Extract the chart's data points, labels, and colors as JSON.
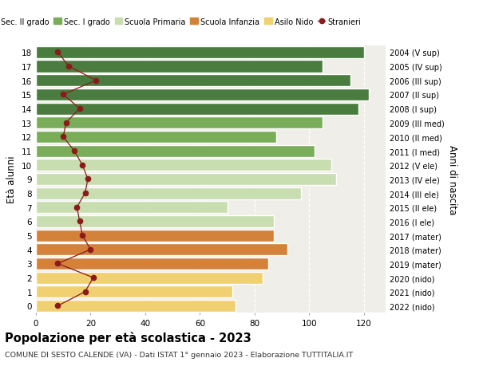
{
  "ages": [
    18,
    17,
    16,
    15,
    14,
    13,
    12,
    11,
    10,
    9,
    8,
    7,
    6,
    5,
    4,
    3,
    2,
    1,
    0
  ],
  "years": [
    "2004 (V sup)",
    "2005 (IV sup)",
    "2006 (III sup)",
    "2007 (II sup)",
    "2008 (I sup)",
    "2009 (III med)",
    "2010 (II med)",
    "2011 (I med)",
    "2012 (V ele)",
    "2013 (IV ele)",
    "2014 (III ele)",
    "2015 (II ele)",
    "2016 (I ele)",
    "2017 (mater)",
    "2018 (mater)",
    "2019 (mater)",
    "2020 (nido)",
    "2021 (nido)",
    "2022 (nido)"
  ],
  "bar_values": [
    120,
    105,
    115,
    122,
    118,
    105,
    88,
    102,
    108,
    110,
    97,
    70,
    87,
    87,
    92,
    85,
    83,
    72,
    73
  ],
  "bar_colors": [
    "#4a7c3f",
    "#4a7c3f",
    "#4a7c3f",
    "#4a7c3f",
    "#4a7c3f",
    "#7aad5a",
    "#7aad5a",
    "#7aad5a",
    "#c8ddb0",
    "#c8ddb0",
    "#c8ddb0",
    "#c8ddb0",
    "#c8ddb0",
    "#d4813a",
    "#d4813a",
    "#d4813a",
    "#f0d070",
    "#f0d070",
    "#f0d070"
  ],
  "stranieri_values": [
    8,
    12,
    22,
    10,
    16,
    11,
    10,
    14,
    17,
    19,
    18,
    15,
    16,
    17,
    20,
    8,
    21,
    18,
    8
  ],
  "stranieri_color": "#8b1a1a",
  "legend_labels": [
    "Sec. II grado",
    "Sec. I grado",
    "Scuola Primaria",
    "Scuola Infanzia",
    "Asilo Nido",
    "Stranieri"
  ],
  "legend_colors": [
    "#4a7c3f",
    "#7aad5a",
    "#c8ddb0",
    "#d4813a",
    "#f0d070",
    "#8b1a1a"
  ],
  "title": "Popolazione per età scolastica - 2023",
  "subtitle": "COMUNE DI SESTO CALENDE (VA) - Dati ISTAT 1° gennaio 2023 - Elaborazione TUTTITALIA.IT",
  "ylabel_left": "Età alunni",
  "ylabel_right": "Anni di nascita",
  "xlim": [
    0,
    128
  ],
  "xticks": [
    0,
    20,
    40,
    60,
    80,
    100,
    120
  ],
  "background_color": "#ffffff",
  "axes_bg_color": "#f0eee8"
}
